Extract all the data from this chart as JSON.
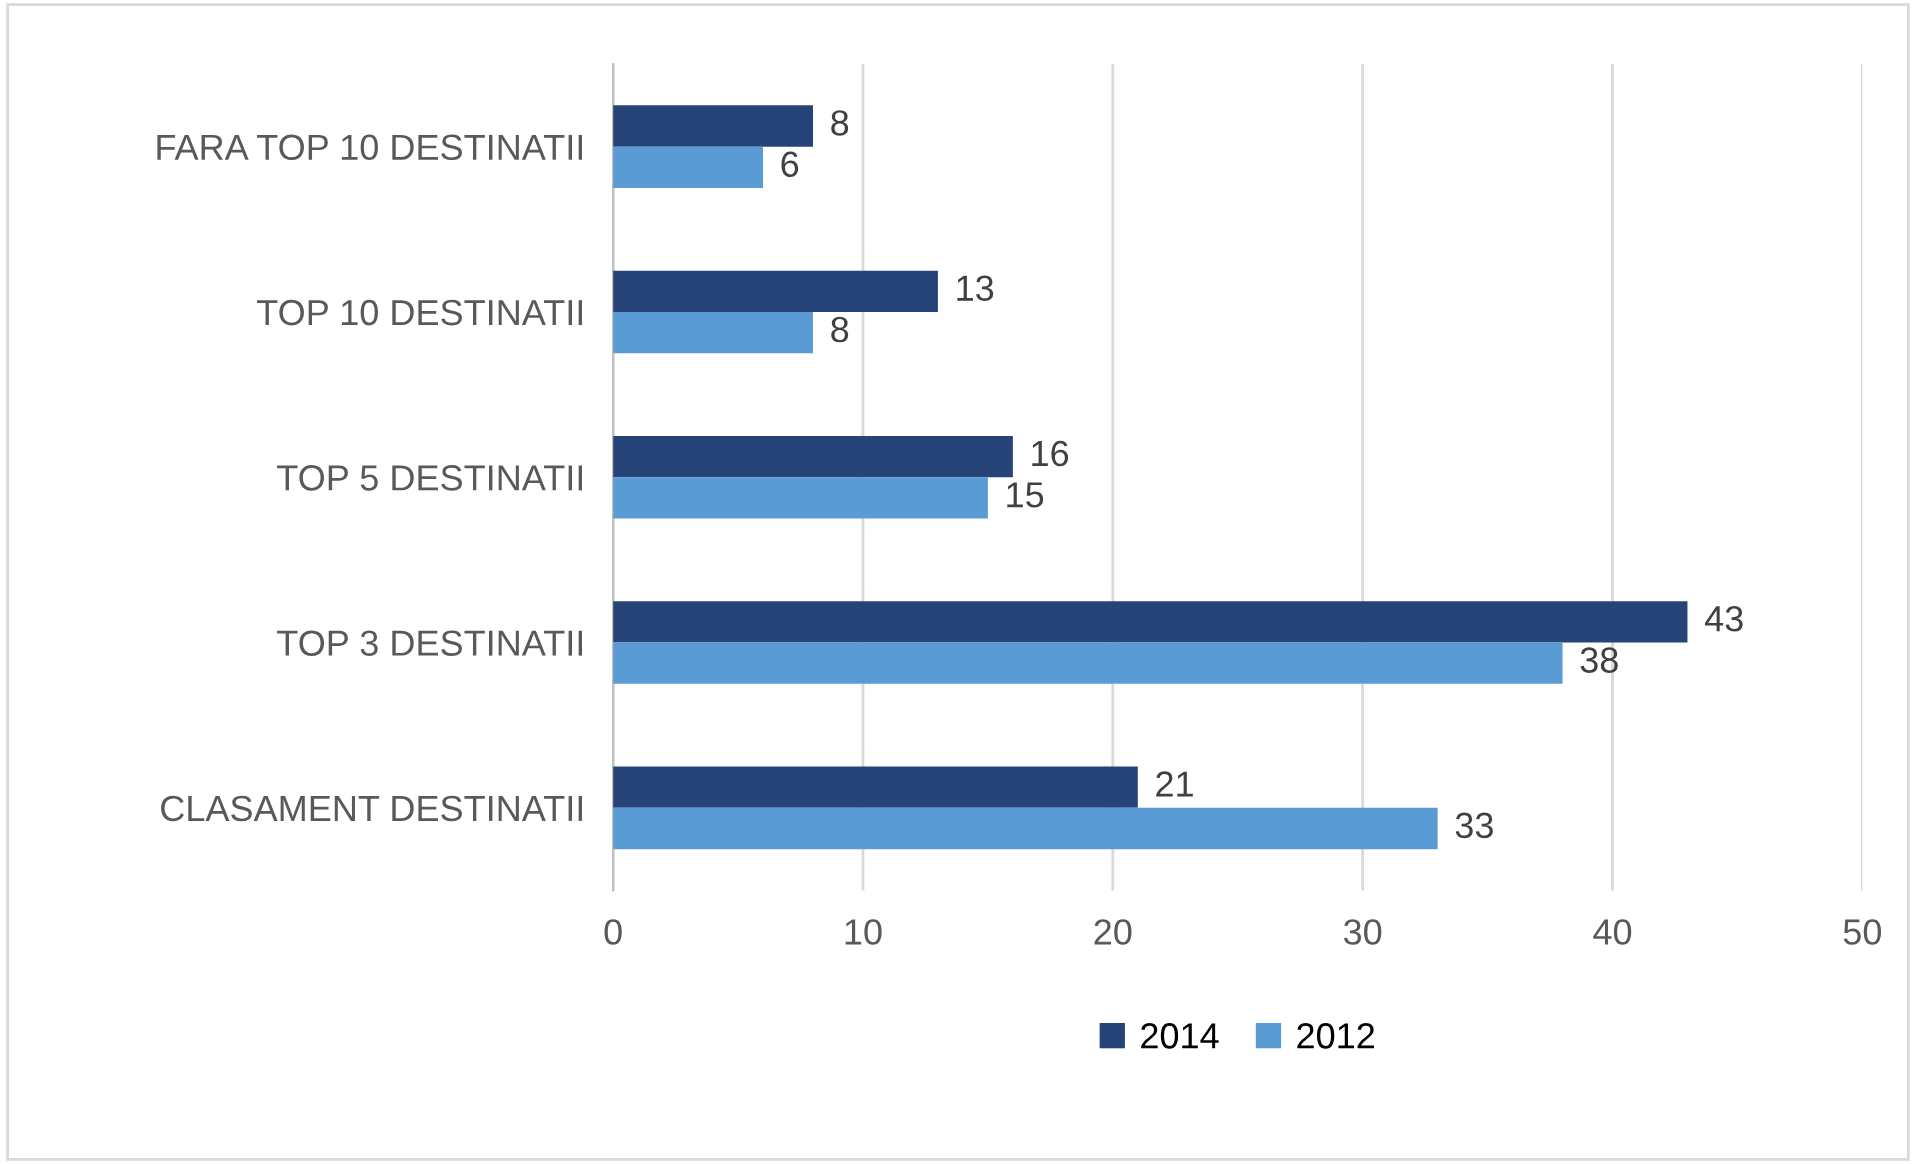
{
  "chart_data": {
    "type": "bar",
    "orientation": "horizontal",
    "categories": [
      "FARA TOP 10 DESTINATII",
      "TOP 10 DESTINATII",
      "TOP 5 DESTINATII",
      "TOP 3 DESTINATII",
      "CLASAMENT DESTINATII"
    ],
    "series": [
      {
        "name": "2014",
        "color": "#264478",
        "values": [
          8,
          13,
          16,
          43,
          21
        ]
      },
      {
        "name": "2012",
        "color": "#5b9bd5",
        "values": [
          6,
          8,
          15,
          38,
          33
        ]
      }
    ],
    "xlim": [
      0,
      50
    ],
    "xticks": [
      0,
      10,
      20,
      30,
      40,
      50
    ],
    "grid": "x",
    "legend": "bottom",
    "data_labels": true
  }
}
